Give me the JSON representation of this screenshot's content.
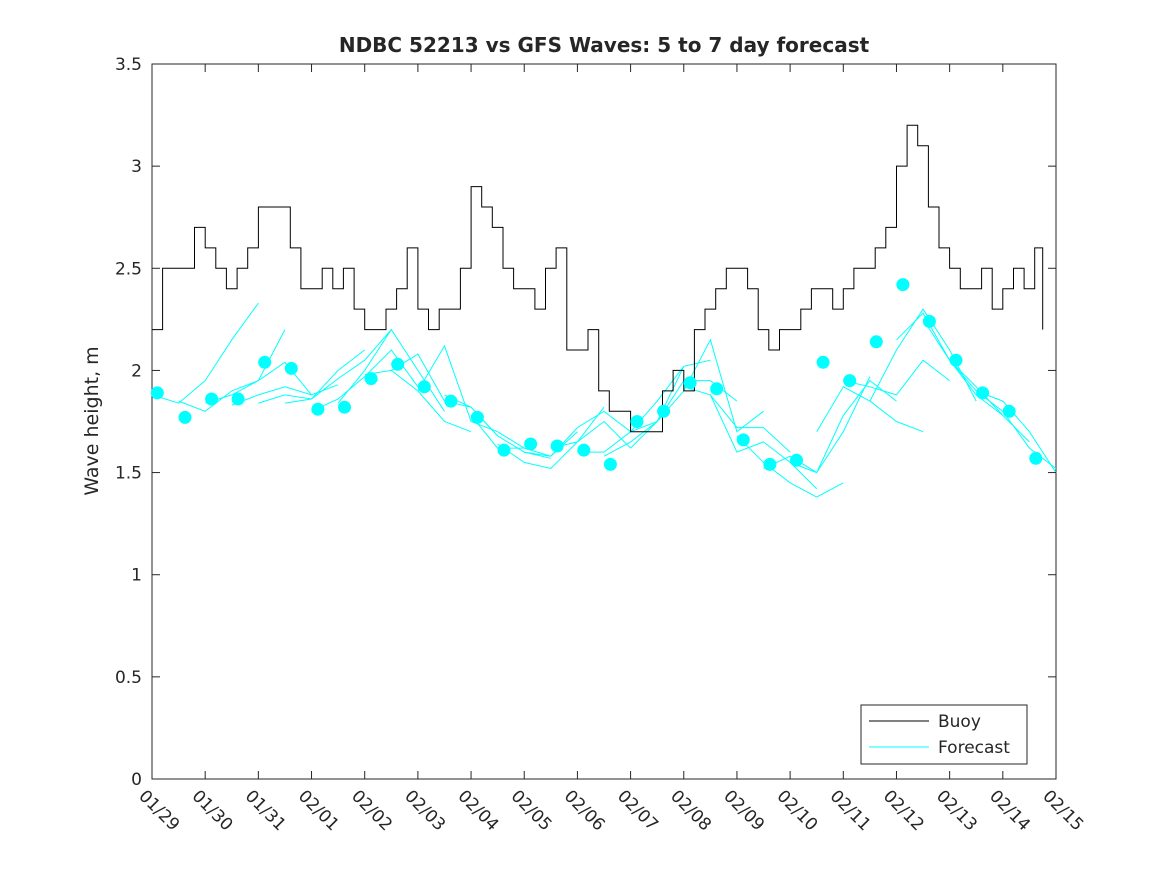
{
  "chart_data": {
    "type": "line",
    "title": "NDBC 52213 vs GFS Waves: 5 to 7 day forecast",
    "xlabel": "",
    "ylabel": "Wave height, m",
    "xlim": [
      0,
      17
    ],
    "ylim": [
      0,
      3.5
    ],
    "xticks": [
      {
        "value": 0,
        "label": "01/29"
      },
      {
        "value": 1,
        "label": "01/30"
      },
      {
        "value": 2,
        "label": "01/31"
      },
      {
        "value": 3,
        "label": "02/01"
      },
      {
        "value": 4,
        "label": "02/02"
      },
      {
        "value": 5,
        "label": "02/03"
      },
      {
        "value": 6,
        "label": "02/04"
      },
      {
        "value": 7,
        "label": "02/05"
      },
      {
        "value": 8,
        "label": "02/06"
      },
      {
        "value": 9,
        "label": "02/07"
      },
      {
        "value": 10,
        "label": "02/08"
      },
      {
        "value": 11,
        "label": "02/09"
      },
      {
        "value": 12,
        "label": "02/10"
      },
      {
        "value": 13,
        "label": "02/11"
      },
      {
        "value": 14,
        "label": "02/12"
      },
      {
        "value": 15,
        "label": "02/13"
      },
      {
        "value": 16,
        "label": "02/14"
      },
      {
        "value": 17,
        "label": "02/15"
      }
    ],
    "yticks": [
      {
        "value": 0,
        "label": "0"
      },
      {
        "value": 0.5,
        "label": "0.5"
      },
      {
        "value": 1,
        "label": "1"
      },
      {
        "value": 1.5,
        "label": "1.5"
      },
      {
        "value": 2,
        "label": "2"
      },
      {
        "value": 2.5,
        "label": "2.5"
      },
      {
        "value": 3,
        "label": "3"
      },
      {
        "value": 3.5,
        "label": "3.5"
      }
    ],
    "legend": {
      "location": "bottom-right",
      "entries": [
        {
          "name": "Buoy",
          "color": "#000000"
        },
        {
          "name": "Forecast",
          "color": "#00ffff"
        }
      ]
    },
    "series": [
      {
        "name": "Buoy",
        "color": "#000000",
        "x": [
          0,
          0.2,
          0.4,
          0.6,
          0.8,
          1,
          1.2,
          1.4,
          1.6,
          1.8,
          2,
          2.2,
          2.4,
          2.6,
          2.8,
          3,
          3.2,
          3.4,
          3.6,
          3.8,
          4,
          4.2,
          4.4,
          4.6,
          4.8,
          5,
          5.2,
          5.4,
          5.6,
          5.8,
          6,
          6.2,
          6.4,
          6.6,
          6.8,
          7,
          7.2,
          7.4,
          7.6,
          7.8,
          8,
          8.2,
          8.4,
          8.6,
          8.8,
          9,
          9.2,
          9.4,
          9.6,
          9.8,
          10,
          10.2,
          10.4,
          10.6,
          10.8,
          11,
          11.2,
          11.4,
          11.6,
          11.8,
          12,
          12.2,
          12.4,
          12.6,
          12.8,
          13,
          13.2,
          13.4,
          13.6,
          13.8,
          14,
          14.2,
          14.4,
          14.6,
          14.8,
          15,
          15.2,
          15.4,
          15.6,
          15.8,
          16,
          16.2,
          16.4,
          16.6,
          16.75
        ],
        "y": [
          2.2,
          2.5,
          2.5,
          2.5,
          2.7,
          2.6,
          2.5,
          2.4,
          2.5,
          2.6,
          2.8,
          2.8,
          2.8,
          2.6,
          2.4,
          2.4,
          2.5,
          2.4,
          2.5,
          2.3,
          2.2,
          2.2,
          2.3,
          2.4,
          2.6,
          2.3,
          2.2,
          2.3,
          2.3,
          2.5,
          2.9,
          2.8,
          2.7,
          2.5,
          2.4,
          2.4,
          2.3,
          2.5,
          2.6,
          2.1,
          2.1,
          2.2,
          1.9,
          1.8,
          1.8,
          1.7,
          1.7,
          1.7,
          1.9,
          2.0,
          1.9,
          2.2,
          2.3,
          2.4,
          2.5,
          2.5,
          2.4,
          2.2,
          2.1,
          2.2,
          2.2,
          2.3,
          2.4,
          2.4,
          2.3,
          2.4,
          2.5,
          2.5,
          2.6,
          2.7,
          3.0,
          3.2,
          3.1,
          2.8,
          2.6,
          2.5,
          2.4,
          2.4,
          2.5,
          2.3,
          2.4,
          2.5,
          2.4,
          2.6,
          2.2
        ]
      },
      {
        "name": "Forecast",
        "color": "#00ffff",
        "lines": [
          {
            "x": [
              0.0,
              0.5,
              1.0,
              1.5,
              2.0
            ],
            "y": [
              1.88,
              1.84,
              1.95,
              2.15,
              2.33
            ]
          },
          {
            "x": [
              0.5,
              1.0,
              1.5,
              2.0,
              2.5
            ],
            "y": [
              1.85,
              1.8,
              1.9,
              1.95,
              2.2
            ]
          },
          {
            "x": [
              1.0,
              1.5,
              2.0,
              2.5,
              3.0
            ],
            "y": [
              1.84,
              1.88,
              1.95,
              2.04,
              1.88
            ]
          },
          {
            "x": [
              1.5,
              2.0,
              2.5,
              3.0,
              3.5
            ],
            "y": [
              1.83,
              1.88,
              1.92,
              1.88,
              1.93
            ]
          },
          {
            "x": [
              2.0,
              2.5,
              3.0,
              3.5,
              4.0
            ],
            "y": [
              1.84,
              1.88,
              1.86,
              2.0,
              2.1
            ]
          },
          {
            "x": [
              2.5,
              3.0,
              3.5,
              4.0,
              4.5
            ],
            "y": [
              1.84,
              1.86,
              1.96,
              2.05,
              2.2
            ]
          },
          {
            "x": [
              3.0,
              3.5,
              4.0,
              4.5,
              5.0
            ],
            "y": [
              1.8,
              1.86,
              1.97,
              2.1,
              1.92
            ]
          },
          {
            "x": [
              3.5,
              4.0,
              4.5,
              5.0,
              5.5
            ],
            "y": [
              1.84,
              2.0,
              2.2,
              2.0,
              1.8
            ]
          },
          {
            "x": [
              4.0,
              4.5,
              5.0,
              5.5,
              6.0
            ],
            "y": [
              1.98,
              2.0,
              1.9,
              1.75,
              1.7
            ]
          },
          {
            "x": [
              4.5,
              5.0,
              5.5,
              6.0,
              6.5
            ],
            "y": [
              2.0,
              2.08,
              1.85,
              1.82,
              1.68
            ]
          },
          {
            "x": [
              5.0,
              5.5,
              6.0,
              6.5,
              7.0
            ],
            "y": [
              1.9,
              2.12,
              1.75,
              1.7,
              1.62
            ]
          },
          {
            "x": [
              5.5,
              6.0,
              6.5,
              7.0,
              7.5
            ],
            "y": [
              1.88,
              1.82,
              1.68,
              1.6,
              1.57
            ]
          },
          {
            "x": [
              6.0,
              6.5,
              7.0,
              7.5,
              8.0
            ],
            "y": [
              1.78,
              1.62,
              1.62,
              1.58,
              1.7
            ]
          },
          {
            "x": [
              6.5,
              7.0,
              7.5,
              8.0,
              8.5
            ],
            "y": [
              1.64,
              1.55,
              1.52,
              1.65,
              1.82
            ]
          },
          {
            "x": [
              7.0,
              7.5,
              8.0,
              8.5,
              9.0
            ],
            "y": [
              1.6,
              1.58,
              1.72,
              1.8,
              1.7
            ]
          },
          {
            "x": [
              7.5,
              8.0,
              8.5,
              9.0,
              9.5
            ],
            "y": [
              1.62,
              1.65,
              1.75,
              1.62,
              1.75
            ]
          },
          {
            "x": [
              8.0,
              8.5,
              9.0,
              9.5,
              10.0
            ],
            "y": [
              1.6,
              1.6,
              1.7,
              1.85,
              2.02
            ]
          },
          {
            "x": [
              8.5,
              9.0,
              9.5,
              10.0,
              10.5
            ],
            "y": [
              1.58,
              1.65,
              1.75,
              2.02,
              2.05
            ]
          },
          {
            "x": [
              9.0,
              9.5,
              10.0,
              10.5,
              11.0
            ],
            "y": [
              1.7,
              1.75,
              1.95,
              1.95,
              1.85
            ]
          },
          {
            "x": [
              9.5,
              10.0,
              10.5,
              11.0,
              11.5
            ],
            "y": [
              1.75,
              1.9,
              2.15,
              1.7,
              1.8
            ]
          },
          {
            "x": [
              10.0,
              10.5,
              11.0,
              11.5,
              12.0
            ],
            "y": [
              1.92,
              1.88,
              1.72,
              1.72,
              1.6
            ]
          },
          {
            "x": [
              10.5,
              11.0,
              11.5,
              12.0,
              12.5
            ],
            "y": [
              1.88,
              1.6,
              1.65,
              1.55,
              1.42
            ]
          },
          {
            "x": [
              11.0,
              11.5,
              12.0,
              12.5,
              13.0
            ],
            "y": [
              1.68,
              1.55,
              1.45,
              1.38,
              1.45
            ]
          },
          {
            "x": [
              11.5,
              12.0,
              12.5,
              13.0,
              13.5
            ],
            "y": [
              1.52,
              1.58,
              1.5,
              1.7,
              1.97
            ]
          },
          {
            "x": [
              12.0,
              12.5,
              13.0,
              13.5,
              14.0
            ],
            "y": [
              1.55,
              1.5,
              1.78,
              1.95,
              1.85
            ]
          },
          {
            "x": [
              12.5,
              13.0,
              13.5,
              14.0,
              14.5
            ],
            "y": [
              1.7,
              1.92,
              1.85,
              1.75,
              1.7
            ]
          },
          {
            "x": [
              13.0,
              13.5,
              14.0,
              14.5,
              15.0
            ],
            "y": [
              1.95,
              1.92,
              1.88,
              2.05,
              1.95
            ]
          },
          {
            "x": [
              13.5,
              14.0,
              14.5,
              15.0,
              15.5
            ],
            "y": [
              1.85,
              2.1,
              2.3,
              2.1,
              1.85
            ]
          },
          {
            "x": [
              14.0,
              14.5,
              15.0,
              15.5,
              16.0
            ],
            "y": [
              2.15,
              2.28,
              2.05,
              1.88,
              1.78
            ]
          },
          {
            "x": [
              14.5,
              15.0,
              15.5,
              16.0,
              16.5
            ],
            "y": [
              2.25,
              2.05,
              1.92,
              1.78,
              1.65
            ]
          },
          {
            "x": [
              15.0,
              15.5,
              16.0,
              16.5,
              17.0
            ],
            "y": [
              2.05,
              1.9,
              1.8,
              1.62,
              1.52
            ]
          },
          {
            "x": [
              15.5,
              16.0,
              16.5,
              17.0
            ],
            "y": [
              1.9,
              1.85,
              1.7,
              1.5
            ]
          }
        ],
        "markers": [
          {
            "x": 0.1,
            "y": 1.89
          },
          {
            "x": 0.62,
            "y": 1.77
          },
          {
            "x": 1.12,
            "y": 1.86
          },
          {
            "x": 1.62,
            "y": 1.86
          },
          {
            "x": 2.12,
            "y": 2.04
          },
          {
            "x": 2.62,
            "y": 2.01
          },
          {
            "x": 3.12,
            "y": 1.81
          },
          {
            "x": 3.62,
            "y": 1.82
          },
          {
            "x": 4.12,
            "y": 1.96
          },
          {
            "x": 4.62,
            "y": 2.03
          },
          {
            "x": 5.12,
            "y": 1.92
          },
          {
            "x": 5.62,
            "y": 1.85
          },
          {
            "x": 6.12,
            "y": 1.77
          },
          {
            "x": 6.62,
            "y": 1.61
          },
          {
            "x": 7.12,
            "y": 1.64
          },
          {
            "x": 7.62,
            "y": 1.63
          },
          {
            "x": 8.12,
            "y": 1.61
          },
          {
            "x": 8.62,
            "y": 1.54
          },
          {
            "x": 9.12,
            "y": 1.75
          },
          {
            "x": 9.62,
            "y": 1.8
          },
          {
            "x": 10.12,
            "y": 1.94
          },
          {
            "x": 10.62,
            "y": 1.91
          },
          {
            "x": 11.12,
            "y": 1.66
          },
          {
            "x": 11.62,
            "y": 1.54
          },
          {
            "x": 12.12,
            "y": 1.56
          },
          {
            "x": 12.62,
            "y": 2.04
          },
          {
            "x": 13.12,
            "y": 1.95
          },
          {
            "x": 13.62,
            "y": 2.14
          },
          {
            "x": 14.12,
            "y": 2.42
          },
          {
            "x": 14.62,
            "y": 2.24
          },
          {
            "x": 15.12,
            "y": 2.05
          },
          {
            "x": 15.62,
            "y": 1.89
          },
          {
            "x": 16.12,
            "y": 1.8
          },
          {
            "x": 16.62,
            "y": 1.57
          }
        ]
      }
    ]
  }
}
